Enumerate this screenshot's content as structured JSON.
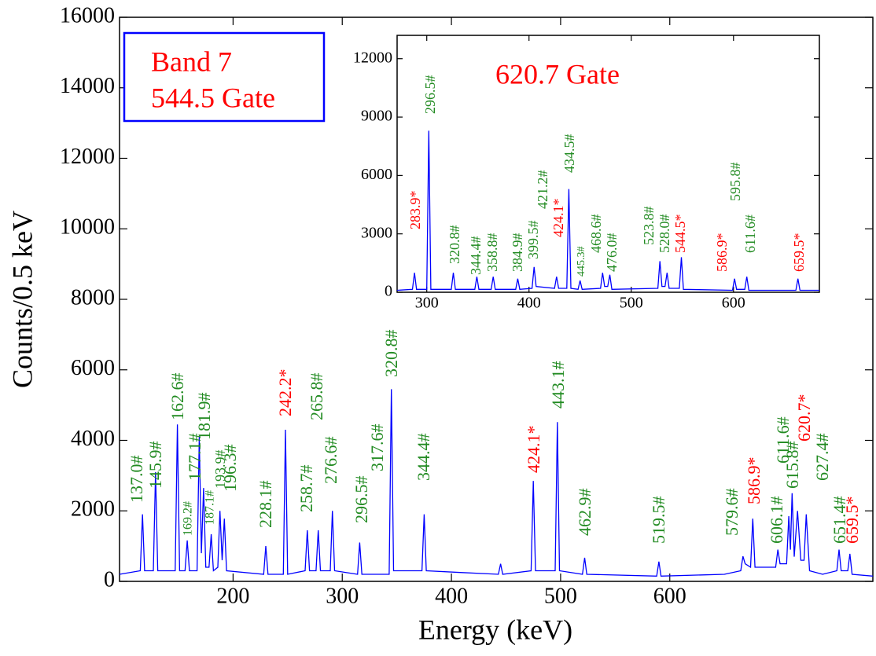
{
  "chart_data": [
    {
      "type": "line",
      "xlabel": "Energy (keV)",
      "ylabel": "Counts/0.5 keV",
      "band_label": [
        "Band 7",
        "544.5 Gate"
      ],
      "band_label_color": "#ff0000",
      "band_box_color": "#0000ff",
      "xlim": [
        96,
        786
      ],
      "ylim": [
        0,
        16000
      ],
      "xticks": [
        200,
        300,
        400,
        500,
        600
      ],
      "yticks": [
        0,
        2000,
        4000,
        6000,
        8000,
        10000,
        12000,
        14000,
        16000
      ],
      "color": "#0000ff",
      "x": [
        96,
        115,
        117,
        119,
        127,
        129,
        131,
        147,
        149,
        151,
        156,
        158,
        160,
        167,
        169,
        171,
        173,
        175,
        178,
        180,
        182,
        186,
        188,
        190,
        192,
        194,
        228,
        230,
        232,
        246,
        248,
        250,
        266,
        268,
        270,
        276,
        278,
        280,
        289,
        291,
        293,
        314,
        316,
        318,
        343,
        345,
        347,
        373,
        375,
        377,
        410,
        443,
        445,
        447,
        473,
        475,
        477,
        495,
        497,
        499,
        520,
        522,
        524,
        588,
        590,
        592,
        650,
        665,
        667,
        669,
        674,
        676,
        678,
        697,
        699,
        701,
        707,
        709,
        710.5,
        712,
        714,
        717,
        720,
        723,
        725,
        728,
        740,
        753,
        755,
        757,
        763,
        765,
        767,
        786
      ],
      "values": [
        200,
        300,
        1900,
        300,
        300,
        3100,
        300,
        300,
        4450,
        300,
        300,
        1160,
        300,
        300,
        4100,
        800,
        2650,
        400,
        400,
        1340,
        300,
        400,
        2000,
        600,
        1780,
        300,
        200,
        1000,
        200,
        200,
        4300,
        200,
        300,
        1450,
        300,
        300,
        1450,
        300,
        300,
        2000,
        300,
        200,
        1100,
        200,
        200,
        5450,
        300,
        300,
        1900,
        300,
        250,
        200,
        500,
        200,
        300,
        2850,
        300,
        300,
        4520,
        300,
        200,
        670,
        200,
        150,
        560,
        150,
        200,
        300,
        710,
        500,
        400,
        1780,
        400,
        400,
        900,
        500,
        500,
        1850,
        900,
        2500,
        700,
        2000,
        600,
        600,
        1900,
        300,
        200,
        300,
        900,
        300,
        300,
        780,
        200,
        150
      ],
      "annotations": [
        {
          "text": "137.0#",
          "color": "#228b22"
        },
        {
          "text": "145.9#",
          "color": "#228b22"
        },
        {
          "text": "162.6#",
          "color": "#228b22"
        },
        {
          "text": "169.2#",
          "color": "#228b22"
        },
        {
          "text": "177.1#",
          "color": "#228b22"
        },
        {
          "text": "181.9#",
          "color": "#228b22"
        },
        {
          "text": "187.1#",
          "color": "#228b22"
        },
        {
          "text": "193.9#",
          "color": "#228b22"
        },
        {
          "text": "196.3#",
          "color": "#228b22"
        },
        {
          "text": "228.1#",
          "color": "#228b22"
        },
        {
          "text": "242.2*",
          "color": "#ff0000"
        },
        {
          "text": "258.7#",
          "color": "#228b22"
        },
        {
          "text": "265.8#",
          "color": "#228b22"
        },
        {
          "text": "276.6#",
          "color": "#228b22"
        },
        {
          "text": "296.5#",
          "color": "#228b22"
        },
        {
          "text": "317.6#",
          "color": "#228b22"
        },
        {
          "text": "320.8#",
          "color": "#228b22"
        },
        {
          "text": "344.4#",
          "color": "#228b22"
        },
        {
          "text": "424.1*",
          "color": "#ff0000"
        },
        {
          "text": "443.1#",
          "color": "#228b22"
        },
        {
          "text": "462.9#",
          "color": "#228b22"
        },
        {
          "text": "519.5#",
          "color": "#228b22"
        },
        {
          "text": "579.6#",
          "color": "#228b22"
        },
        {
          "text": "586.9*",
          "color": "#ff0000"
        },
        {
          "text": "606.1#",
          "color": "#228b22"
        },
        {
          "text": "611.6#",
          "color": "#228b22"
        },
        {
          "text": "615.8#",
          "color": "#228b22"
        },
        {
          "text": "620.7*",
          "color": "#ff0000"
        },
        {
          "text": "627.4#",
          "color": "#228b22"
        },
        {
          "text": "651.4#",
          "color": "#228b22"
        },
        {
          "text": "659.5*",
          "color": "#ff0000"
        }
      ]
    },
    {
      "type": "line",
      "title": "620.7 Gate",
      "title_color": "#ff0000",
      "xlim": [
        271,
        684
      ],
      "ylim": [
        0,
        13200
      ],
      "xticks": [
        300,
        400,
        500,
        600
      ],
      "yticks": [
        0,
        3000,
        6000,
        9000,
        12000
      ],
      "color": "#0000ff",
      "x": [
        271,
        286,
        288,
        290,
        300,
        302,
        304,
        324,
        326,
        328,
        347,
        349,
        351,
        363,
        365,
        367,
        387,
        389,
        391,
        403,
        405,
        407,
        425,
        427,
        429,
        437,
        439,
        441,
        448,
        450,
        452,
        470,
        472,
        474,
        477,
        479,
        481,
        526,
        528,
        530,
        533,
        535,
        537,
        547,
        549,
        551,
        599,
        601,
        603,
        611,
        613,
        615,
        661,
        663,
        665,
        684
      ],
      "values": [
        100,
        150,
        1000,
        150,
        150,
        8300,
        150,
        150,
        1000,
        150,
        150,
        800,
        150,
        150,
        800,
        150,
        150,
        700,
        150,
        200,
        1300,
        300,
        200,
        800,
        200,
        200,
        5300,
        200,
        150,
        600,
        150,
        200,
        1000,
        300,
        300,
        900,
        150,
        200,
        1600,
        300,
        300,
        1000,
        200,
        200,
        1800,
        150,
        100,
        700,
        150,
        150,
        800,
        100,
        100,
        700,
        100,
        100
      ],
      "annotations": [
        {
          "text": "283.9*",
          "color": "#ff0000"
        },
        {
          "text": "296.5#",
          "color": "#228b22"
        },
        {
          "text": "320.8#",
          "color": "#228b22"
        },
        {
          "text": "344.4#",
          "color": "#228b22"
        },
        {
          "text": "358.8#",
          "color": "#228b22"
        },
        {
          "text": "384.9#",
          "color": "#228b22"
        },
        {
          "text": "399.5#",
          "color": "#228b22"
        },
        {
          "text": "421.2#",
          "color": "#228b22"
        },
        {
          "text": "424.1*",
          "color": "#ff0000"
        },
        {
          "text": "434.5#",
          "color": "#228b22"
        },
        {
          "text": "445.3#",
          "color": "#228b22"
        },
        {
          "text": "468.6#",
          "color": "#228b22"
        },
        {
          "text": "476.0#",
          "color": "#228b22"
        },
        {
          "text": "523.8#",
          "color": "#228b22"
        },
        {
          "text": "528.0#",
          "color": "#228b22"
        },
        {
          "text": "544.5*",
          "color": "#ff0000"
        },
        {
          "text": "586.9*",
          "color": "#ff0000"
        },
        {
          "text": "595.8#",
          "color": "#228b22"
        },
        {
          "text": "611.6#",
          "color": "#228b22"
        },
        {
          "text": "659.5*",
          "color": "#ff0000"
        }
      ]
    }
  ]
}
